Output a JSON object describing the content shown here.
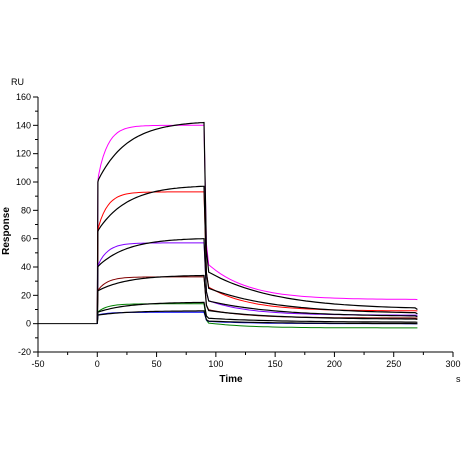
{
  "chart_data": {
    "type": "line",
    "ylabel": "Response",
    "xlabel": "Time",
    "y_unit": "RU",
    "x_unit": "s",
    "xlim": [
      -50,
      300
    ],
    "ylim": [
      -20,
      160
    ],
    "x_ticks": [
      -50,
      0,
      50,
      100,
      150,
      200,
      250,
      300
    ],
    "y_ticks": [
      -20,
      0,
      20,
      40,
      60,
      80,
      100,
      120,
      140,
      160
    ],
    "grid": false,
    "baseline": {
      "color": "#000000",
      "x": [
        -50,
        0
      ],
      "y": [
        0,
        0
      ]
    },
    "sensorgram": {
      "injection_start": 0,
      "injection_end": 90,
      "run_end": 270,
      "fitted_color": "#000000",
      "series": [
        {
          "color": "#ff00ff",
          "bulk": 100,
          "plateau_measured": 140,
          "plateau_fit": 142,
          "dissoc_end_measured": 17,
          "dissoc_end_fit": 10
        },
        {
          "color": "#ff0000",
          "bulk": 65,
          "plateau_measured": 93,
          "plateau_fit": 97,
          "dissoc_end_measured": 9,
          "dissoc_end_fit": 7
        },
        {
          "color": "#8000ff",
          "bulk": 40,
          "plateau_measured": 57,
          "plateau_fit": 60,
          "dissoc_end_measured": 6,
          "dissoc_end_fit": 5
        },
        {
          "color": "#800000",
          "bulk": 23,
          "plateau_measured": 33,
          "plateau_fit": 34,
          "dissoc_end_measured": 4,
          "dissoc_end_fit": 3
        },
        {
          "color": "#008000",
          "bulk": 8,
          "plateau_measured": 14,
          "plateau_fit": 15,
          "dissoc_end_measured": -3,
          "dissoc_end_fit": 1
        },
        {
          "color": "#0000ff",
          "bulk": 6,
          "plateau_measured": 8,
          "plateau_fit": 9,
          "dissoc_end_measured": 0,
          "dissoc_end_fit": 0
        }
      ]
    }
  }
}
